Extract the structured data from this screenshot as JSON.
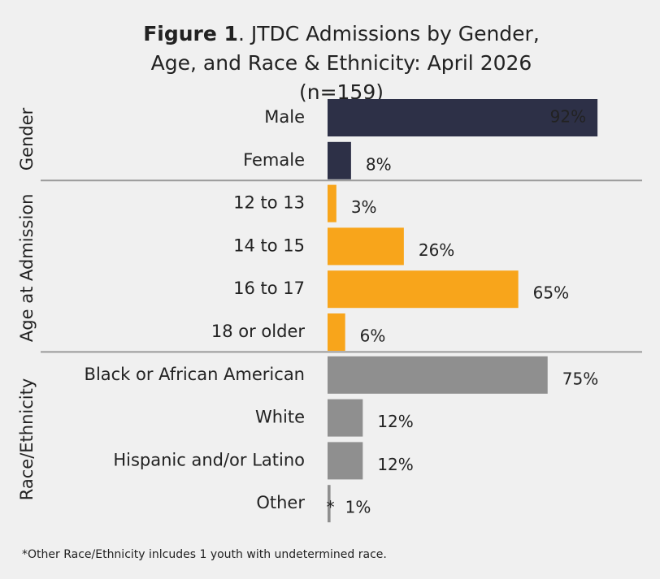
{
  "chart_data": {
    "type": "bar",
    "orientation": "horizontal",
    "title_label": "Figure 1",
    "title": ". JTDC Admissions by Gender, Age, and Race & Ethnicity: April 2026 (n=159)",
    "xlim": [
      0,
      100
    ],
    "groups": [
      {
        "name": "Gender",
        "color": "#2d3047",
        "categories": [
          "Male",
          "Female"
        ],
        "values": [
          92,
          8
        ],
        "value_labels": [
          "92%",
          "8%"
        ]
      },
      {
        "name": "Age at Admission",
        "color": "#f8a51b",
        "categories": [
          "12 to 13",
          "14 to 15",
          "16 to 17",
          "18 or older"
        ],
        "values": [
          3,
          26,
          65,
          6
        ],
        "value_labels": [
          "3%",
          "26%",
          "65%",
          "6%"
        ]
      },
      {
        "name": "Race/Ethnicity",
        "color": "#8f8f8f",
        "categories": [
          "Black or African American",
          "White",
          "Hispanic and/or Latino",
          "Other"
        ],
        "values": [
          75,
          12,
          12,
          1
        ],
        "value_labels": [
          "75%",
          "12%",
          "12%",
          "1%"
        ],
        "markers": [
          null,
          null,
          null,
          "*"
        ]
      }
    ],
    "footnote": "*Other Race/Ethnicity inlcudes 1 youth with undetermined race."
  }
}
